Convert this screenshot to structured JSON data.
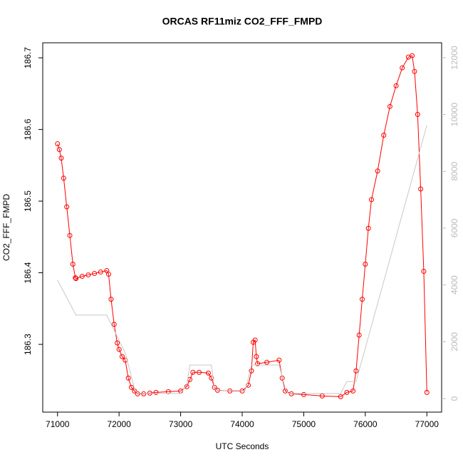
{
  "chart_data": {
    "type": "scatter",
    "title": "ORCAS RF11miz CO2_FFF_FMPD",
    "x_label": "UTC Seconds",
    "y_label": "CO2_FFF_FMPD",
    "xlim": [
      70760,
      77240
    ],
    "xticks": [
      71000,
      72000,
      73000,
      74000,
      75000,
      76000,
      77000
    ],
    "ylim": [
      186.2055,
      186.721
    ],
    "yticks": [
      186.3,
      186.4,
      186.5,
      186.6,
      186.7
    ],
    "y2lim": [
      -477,
      12527
    ],
    "y2ticks": [
      0,
      2000,
      4000,
      6000,
      8000,
      10000,
      12000
    ],
    "series": [
      {
        "color": "#ff0000",
        "marker": "circle",
        "x": [
          71000,
          71030,
          71060,
          71100,
          71150,
          71200,
          71250,
          71290,
          71300,
          71400,
          71500,
          71600,
          71700,
          71800,
          71830,
          71870,
          71920,
          71970,
          72000,
          72050,
          72100,
          72150,
          72200,
          72250,
          72300,
          72400,
          72500,
          72600,
          72800,
          73000,
          73100,
          73150,
          73200,
          73300,
          73450,
          73500,
          73550,
          73600,
          73800,
          74000,
          74100,
          74150,
          74180,
          74210,
          74230,
          74250,
          74400,
          74600,
          74650,
          74700,
          74800,
          75000,
          75300,
          75600,
          75700,
          75800,
          75850,
          75900,
          75950,
          76000,
          76050,
          76100,
          76200,
          76300,
          76400,
          76500,
          76600,
          76700,
          76760,
          76800,
          76850,
          76900,
          76950,
          77000
        ],
        "values": [
          186.58,
          186.572,
          186.56,
          186.532,
          186.492,
          186.452,
          186.412,
          186.393,
          186.392,
          186.395,
          186.397,
          186.399,
          186.401,
          186.403,
          186.398,
          186.363,
          186.328,
          186.302,
          186.293,
          186.283,
          186.278,
          186.253,
          186.24,
          186.235,
          186.231,
          186.231,
          186.232,
          186.233,
          186.234,
          186.235,
          186.241,
          186.251,
          186.261,
          186.261,
          186.26,
          186.253,
          186.24,
          186.236,
          186.235,
          186.235,
          186.243,
          186.263,
          186.303,
          186.306,
          186.283,
          186.273,
          186.275,
          186.278,
          186.253,
          186.235,
          186.231,
          186.23,
          186.228,
          186.227,
          186.233,
          186.235,
          186.263,
          186.313,
          186.363,
          186.412,
          186.462,
          186.502,
          186.542,
          186.592,
          186.632,
          186.661,
          186.686,
          186.701,
          186.703,
          186.681,
          186.621,
          186.517,
          186.402,
          186.233
        ]
      },
      {
        "color": "#c8c8c8",
        "marker": "line",
        "axis": "y2",
        "x": [
          71000,
          71300,
          71800,
          71900,
          72100,
          72250,
          72300,
          73000,
          73100,
          73150,
          73500,
          73550,
          73600,
          74050,
          74150,
          74600,
          74700,
          74750,
          75600,
          75700,
          75850,
          77000
        ],
        "values": [
          4170,
          2940,
          2940,
          2490,
          1610,
          350,
          180,
          180,
          480,
          1180,
          1180,
          350,
          280,
          280,
          1180,
          1180,
          350,
          180,
          180,
          600,
          600,
          9620
        ]
      }
    ]
  }
}
